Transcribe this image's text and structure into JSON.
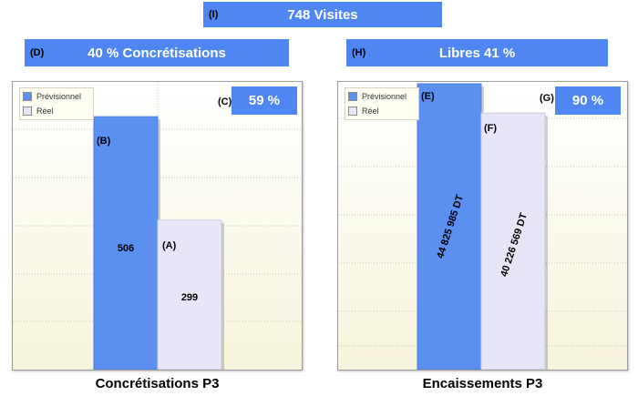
{
  "banner_visits": {
    "tag": "(I)",
    "text": "748 Visites"
  },
  "banner_concretisations": {
    "tag": "(D)",
    "text": "40 % Concrétisations"
  },
  "banner_libres": {
    "tag": "(H)",
    "text": "Libres 41 %"
  },
  "colors": {
    "banner": "#4f86f2",
    "previsionnel": "#5b8ff0",
    "reel": "#e6e6f8",
    "plot_bg": "#faf8ea"
  },
  "legend": {
    "previsionnel": "Prévisionnel",
    "reel": "Réel"
  },
  "chart_data": [
    {
      "type": "bar",
      "caption": "Concrétisations P3",
      "percent_tag": "(C)",
      "percent": "59 %",
      "categories": [
        "Prévisionnel",
        "Réel"
      ],
      "series": [
        {
          "name": "Prévisionnel",
          "tag": "(B)",
          "value": 506,
          "label": "506"
        },
        {
          "name": "Réel",
          "tag": "(A)",
          "value": 299,
          "label": "299"
        }
      ],
      "ylim": [
        0,
        550
      ],
      "grid": true,
      "legend_position": "top-left"
    },
    {
      "type": "bar",
      "caption": "Encaissements P3",
      "percent_tag": "(G)",
      "percent": "90 %",
      "categories": [
        "Prévisionnel",
        "Réel"
      ],
      "series": [
        {
          "name": "Prévisionnel",
          "tag": "(E)",
          "value": 44825985,
          "label": "44 825 985 DT"
        },
        {
          "name": "Réel",
          "tag": "(F)",
          "value": 40226569,
          "label": "40 226 569 DT"
        }
      ],
      "ylim": [
        0,
        44825985
      ],
      "grid": true,
      "legend_position": "top-left"
    }
  ]
}
